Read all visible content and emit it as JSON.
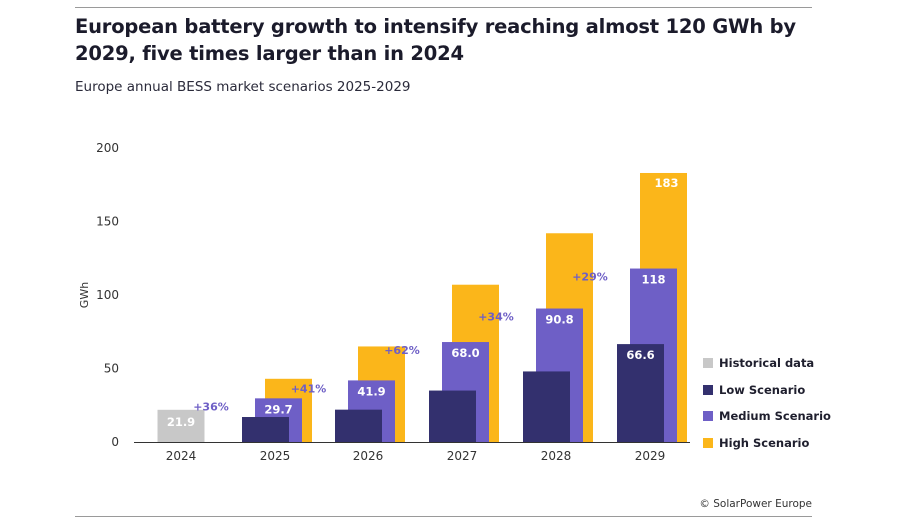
{
  "header": {
    "title": "European battery growth to intensify reaching almost 120 GWh by 2029, five times larger than in 2024",
    "subtitle": "Europe annual BESS market scenarios 2025-2029"
  },
  "source": "© SolarPower Europe",
  "colors": {
    "historical": "#c8c8c8",
    "low": "#33306e",
    "medium": "#6e5fc6",
    "high": "#fbb61a",
    "growth_label": "#6e5fc6",
    "axis": "#333333"
  },
  "chart_data": {
    "type": "bar",
    "ylabel": "GWh",
    "ylim": [
      0,
      200
    ],
    "yticks": [
      0,
      50,
      100,
      150,
      200
    ],
    "categories": [
      "2024",
      "2025",
      "2026",
      "2027",
      "2028",
      "2029"
    ],
    "series": [
      {
        "name": "Historical data",
        "key": "historical",
        "values": [
          21.9,
          null,
          null,
          null,
          null,
          null
        ],
        "labels": [
          "21.9",
          null,
          null,
          null,
          null,
          null
        ]
      },
      {
        "name": "Low Scenario",
        "key": "low",
        "values": [
          null,
          17,
          22,
          35,
          48,
          66.6
        ],
        "labels": [
          null,
          null,
          null,
          null,
          null,
          "66.6"
        ]
      },
      {
        "name": "Medium Scenario",
        "key": "medium",
        "values": [
          null,
          29.7,
          41.9,
          68.0,
          90.8,
          118
        ],
        "labels": [
          null,
          "29.7",
          "41.9",
          "68.0",
          "90.8",
          "118"
        ]
      },
      {
        "name": "High Scenario",
        "key": "high",
        "values": [
          null,
          43,
          65,
          107,
          142,
          183
        ],
        "labels": [
          null,
          null,
          null,
          null,
          null,
          "183"
        ]
      }
    ],
    "growth_labels": [
      "+36%",
      "+41%",
      "+62%",
      "+34%",
      "+29%"
    ],
    "legend": [
      "Historical data",
      "Low Scenario",
      "Medium Scenario",
      "High Scenario"
    ],
    "legend_position": "right"
  }
}
